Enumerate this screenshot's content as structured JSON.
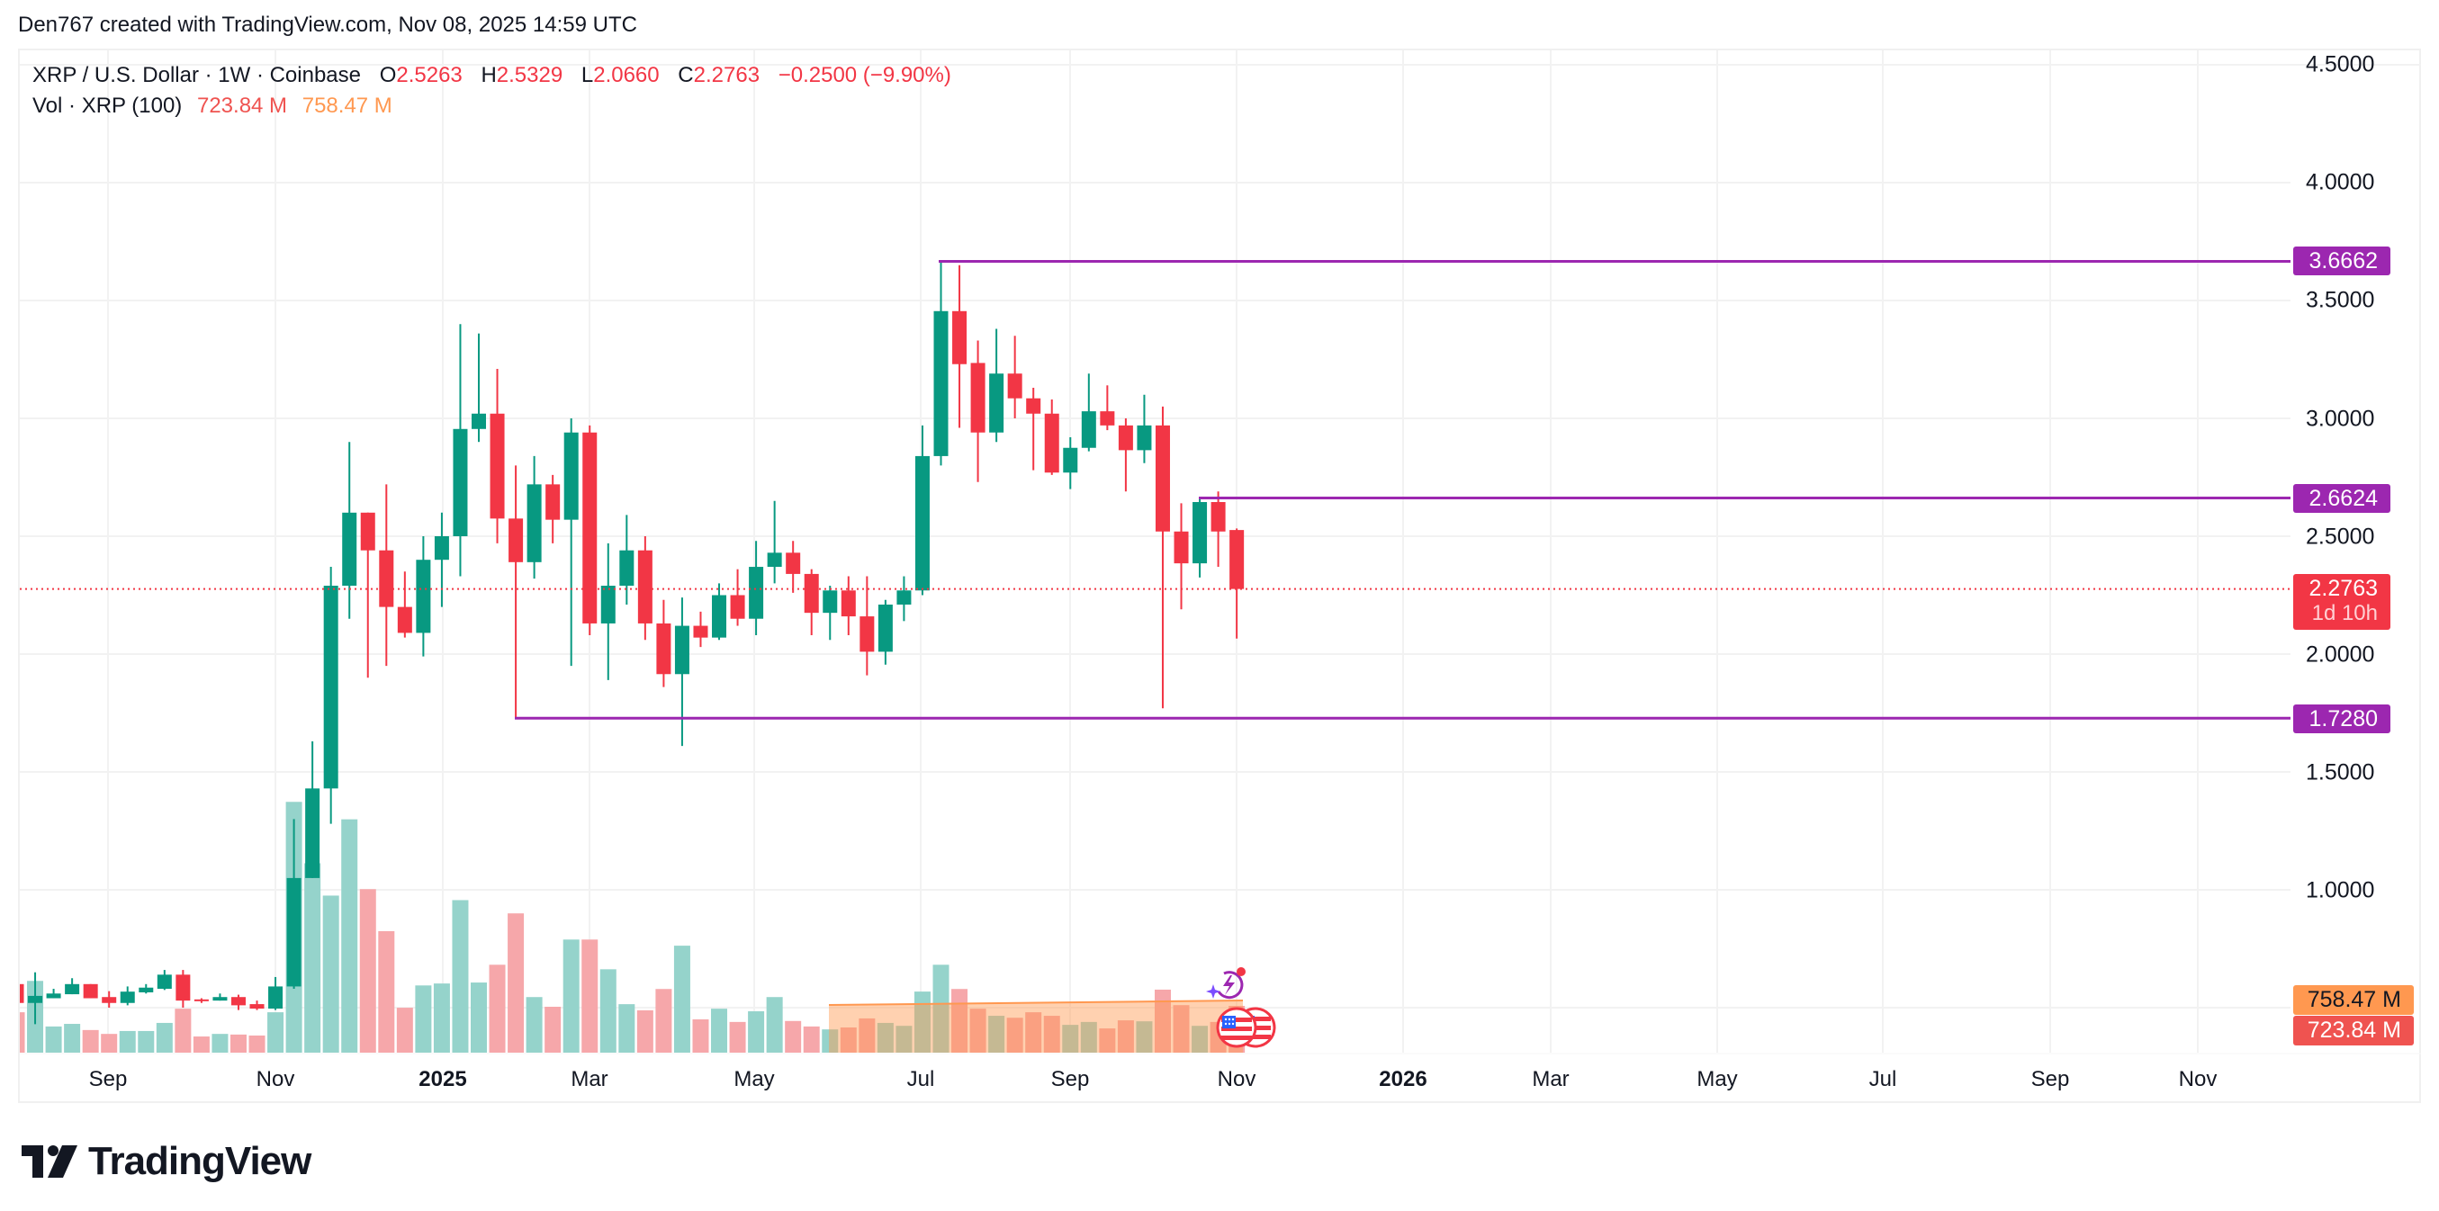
{
  "header": {
    "credit": "Den767 created with TradingView.com, Nov 08, 2025 14:59 UTC"
  },
  "legend": {
    "symbol": "XRP / U.S. Dollar · 1W · Coinbase",
    "o_key": "O",
    "o_val": "2.5263",
    "h_key": "H",
    "h_val": "2.5329",
    "l_key": "L",
    "l_val": "2.0660",
    "c_key": "C",
    "c_val": "2.2763",
    "change": "−0.2500 (−9.90%)",
    "vol_label": "Vol · XRP (100)",
    "vol_val": "723.84 M",
    "vol_ma": "758.47 M"
  },
  "price_axis": {
    "ticks": [
      "4.5000",
      "4.0000",
      "3.5000",
      "3.0000",
      "2.5000",
      "2.0000",
      "1.5000",
      "1.0000"
    ],
    "level_tags": [
      "3.6662",
      "2.6624",
      "1.7280"
    ],
    "last_price": "2.2763",
    "countdown": "1d 10h",
    "vol_ma_tag": "758.47 M",
    "vol_tag": "723.84 M"
  },
  "time_axis": {
    "labels": [
      "Sep",
      "Nov",
      "2025",
      "Mar",
      "May",
      "Jul",
      "Sep",
      "Nov",
      "2026",
      "Mar",
      "May",
      "Jul",
      "Sep",
      "Nov"
    ]
  },
  "brand": {
    "name": "TradingView"
  },
  "colors": {
    "up": "#089981",
    "down": "#f23645",
    "up_vol": "#95d3cb",
    "down_vol": "#f6a7aa",
    "level": "#9c27b0",
    "vol_ma": "#ff9850"
  },
  "chart_data": {
    "type": "candlestick",
    "title": "XRP / U.S. Dollar · 1W · Coinbase",
    "interval": "1W",
    "ylabel": "USD",
    "ylim": [
      0.5,
      4.6
    ],
    "y_ticks": [
      1.0,
      1.5,
      2.0,
      2.5,
      3.0,
      3.5,
      4.0,
      4.5
    ],
    "x_tick_labels": [
      "Sep",
      "Nov",
      "2025",
      "Mar",
      "May",
      "Jul",
      "Sep",
      "Nov",
      "2026",
      "Mar",
      "May",
      "Jul",
      "Sep",
      "Nov"
    ],
    "horizontal_levels": [
      3.6662,
      2.6624,
      1.728
    ],
    "last": {
      "open": 2.5263,
      "high": 2.5329,
      "low": 2.066,
      "close": 2.2763,
      "change": -0.25,
      "change_pct": -9.9
    },
    "volume_last_m": 723.84,
    "volume_ma100_m": 758.47,
    "candles": [
      {
        "o": 0.6,
        "h": 0.62,
        "l": 0.5,
        "c": 0.52,
        "v": 625
      },
      {
        "o": 0.52,
        "h": 0.65,
        "l": 0.43,
        "c": 0.55,
        "v": 1110
      },
      {
        "o": 0.54,
        "h": 0.58,
        "l": 0.54,
        "c": 0.56,
        "v": 405
      },
      {
        "o": 0.557,
        "h": 0.625,
        "l": 0.557,
        "c": 0.6,
        "v": 445
      },
      {
        "o": 0.6,
        "h": 0.6,
        "l": 0.54,
        "c": 0.54,
        "v": 350
      },
      {
        "o": 0.545,
        "h": 0.57,
        "l": 0.5,
        "c": 0.52,
        "v": 290
      },
      {
        "o": 0.52,
        "h": 0.59,
        "l": 0.51,
        "c": 0.568,
        "v": 335
      },
      {
        "o": 0.565,
        "h": 0.6,
        "l": 0.56,
        "c": 0.585,
        "v": 335
      },
      {
        "o": 0.58,
        "h": 0.66,
        "l": 0.575,
        "c": 0.64,
        "v": 460
      },
      {
        "o": 0.64,
        "h": 0.66,
        "l": 0.5,
        "c": 0.53,
        "v": 680
      },
      {
        "o": 0.535,
        "h": 0.54,
        "l": 0.52,
        "c": 0.53,
        "v": 250
      },
      {
        "o": 0.53,
        "h": 0.56,
        "l": 0.53,
        "c": 0.545,
        "v": 290
      },
      {
        "o": 0.545,
        "h": 0.555,
        "l": 0.49,
        "c": 0.51,
        "v": 280
      },
      {
        "o": 0.515,
        "h": 0.53,
        "l": 0.49,
        "c": 0.496,
        "v": 265
      },
      {
        "o": 0.496,
        "h": 0.63,
        "l": 0.49,
        "c": 0.59,
        "v": 625
      },
      {
        "o": 0.59,
        "h": 1.3,
        "l": 0.58,
        "c": 1.05,
        "v": 3880
      },
      {
        "o": 1.05,
        "h": 1.63,
        "l": 1.05,
        "c": 1.43,
        "v": 2930
      },
      {
        "o": 1.43,
        "h": 2.37,
        "l": 1.28,
        "c": 2.29,
        "v": 2430
      },
      {
        "o": 2.29,
        "h": 2.9,
        "l": 2.15,
        "c": 2.6,
        "v": 3610
      },
      {
        "o": 2.6,
        "h": 2.6,
        "l": 1.9,
        "c": 2.44,
        "v": 2530
      },
      {
        "o": 2.44,
        "h": 2.72,
        "l": 1.95,
        "c": 2.2,
        "v": 1880
      },
      {
        "o": 2.2,
        "h": 2.35,
        "l": 2.07,
        "c": 2.09,
        "v": 695
      },
      {
        "o": 2.09,
        "h": 2.5,
        "l": 1.99,
        "c": 2.4,
        "v": 1040
      },
      {
        "o": 2.4,
        "h": 2.6,
        "l": 2.2,
        "c": 2.5,
        "v": 1070
      },
      {
        "o": 2.5,
        "h": 3.4,
        "l": 2.33,
        "c": 2.955,
        "v": 2360
      },
      {
        "o": 2.955,
        "h": 3.36,
        "l": 2.9,
        "c": 3.02,
        "v": 1085
      },
      {
        "o": 3.02,
        "h": 3.21,
        "l": 2.47,
        "c": 2.575,
        "v": 1360
      },
      {
        "o": 2.575,
        "h": 2.8,
        "l": 1.73,
        "c": 2.39,
        "v": 2155
      },
      {
        "o": 2.39,
        "h": 2.84,
        "l": 2.32,
        "c": 2.72,
        "v": 860
      },
      {
        "o": 2.72,
        "h": 2.76,
        "l": 2.47,
        "c": 2.57,
        "v": 710
      },
      {
        "o": 2.57,
        "h": 3.0,
        "l": 1.95,
        "c": 2.94,
        "v": 1750
      },
      {
        "o": 2.94,
        "h": 2.97,
        "l": 2.08,
        "c": 2.13,
        "v": 1750
      },
      {
        "o": 2.13,
        "h": 2.47,
        "l": 1.89,
        "c": 2.29,
        "v": 1290
      },
      {
        "o": 2.29,
        "h": 2.59,
        "l": 2.21,
        "c": 2.44,
        "v": 750
      },
      {
        "o": 2.44,
        "h": 2.5,
        "l": 2.06,
        "c": 2.13,
        "v": 655
      },
      {
        "o": 2.13,
        "h": 2.23,
        "l": 1.86,
        "c": 1.915,
        "v": 985
      },
      {
        "o": 1.915,
        "h": 2.24,
        "l": 1.61,
        "c": 2.12,
        "v": 1655
      },
      {
        "o": 2.12,
        "h": 2.18,
        "l": 2.03,
        "c": 2.07,
        "v": 515
      },
      {
        "o": 2.07,
        "h": 2.3,
        "l": 2.06,
        "c": 2.25,
        "v": 680
      },
      {
        "o": 2.25,
        "h": 2.36,
        "l": 2.12,
        "c": 2.15,
        "v": 475
      },
      {
        "o": 2.15,
        "h": 2.48,
        "l": 2.08,
        "c": 2.37,
        "v": 640
      },
      {
        "o": 2.37,
        "h": 2.65,
        "l": 2.3,
        "c": 2.43,
        "v": 860
      },
      {
        "o": 2.43,
        "h": 2.48,
        "l": 2.26,
        "c": 2.34,
        "v": 490
      },
      {
        "o": 2.34,
        "h": 2.36,
        "l": 2.08,
        "c": 2.175,
        "v": 405
      },
      {
        "o": 2.175,
        "h": 2.29,
        "l": 2.06,
        "c": 2.27,
        "v": 360
      },
      {
        "o": 2.27,
        "h": 2.33,
        "l": 2.08,
        "c": 2.16,
        "v": 390
      },
      {
        "o": 2.16,
        "h": 2.33,
        "l": 1.91,
        "c": 2.01,
        "v": 530
      },
      {
        "o": 2.01,
        "h": 2.23,
        "l": 1.955,
        "c": 2.21,
        "v": 460
      },
      {
        "o": 2.21,
        "h": 2.33,
        "l": 2.14,
        "c": 2.27,
        "v": 415
      },
      {
        "o": 2.27,
        "h": 2.97,
        "l": 2.25,
        "c": 2.84,
        "v": 945
      },
      {
        "o": 2.84,
        "h": 3.67,
        "l": 2.8,
        "c": 3.455,
        "v": 1360
      },
      {
        "o": 3.455,
        "h": 3.65,
        "l": 2.96,
        "c": 3.23,
        "v": 985
      },
      {
        "o": 3.235,
        "h": 3.33,
        "l": 2.73,
        "c": 2.94,
        "v": 680
      },
      {
        "o": 2.94,
        "h": 3.38,
        "l": 2.9,
        "c": 3.19,
        "v": 570
      },
      {
        "o": 3.19,
        "h": 3.35,
        "l": 3.0,
        "c": 3.085,
        "v": 540
      },
      {
        "o": 3.085,
        "h": 3.13,
        "l": 2.78,
        "c": 3.02,
        "v": 625
      },
      {
        "o": 3.02,
        "h": 3.08,
        "l": 2.76,
        "c": 2.77,
        "v": 570
      },
      {
        "o": 2.77,
        "h": 2.92,
        "l": 2.7,
        "c": 2.875,
        "v": 430
      },
      {
        "o": 2.875,
        "h": 3.19,
        "l": 2.86,
        "c": 3.03,
        "v": 475
      },
      {
        "o": 3.03,
        "h": 3.14,
        "l": 2.95,
        "c": 2.97,
        "v": 375
      },
      {
        "o": 2.97,
        "h": 3.0,
        "l": 2.69,
        "c": 2.865,
        "v": 500
      },
      {
        "o": 2.865,
        "h": 3.1,
        "l": 2.81,
        "c": 2.97,
        "v": 485
      },
      {
        "o": 2.97,
        "h": 3.05,
        "l": 1.77,
        "c": 2.52,
        "v": 975
      },
      {
        "o": 2.52,
        "h": 2.64,
        "l": 2.19,
        "c": 2.385,
        "v": 735
      },
      {
        "o": 2.385,
        "h": 2.66,
        "l": 2.325,
        "c": 2.645,
        "v": 415
      },
      {
        "o": 2.645,
        "h": 2.69,
        "l": 2.37,
        "c": 2.52,
        "v": 475
      },
      {
        "o": 2.5263,
        "h": 2.5329,
        "l": 2.066,
        "c": 2.2763,
        "v": 723.84
      }
    ]
  }
}
